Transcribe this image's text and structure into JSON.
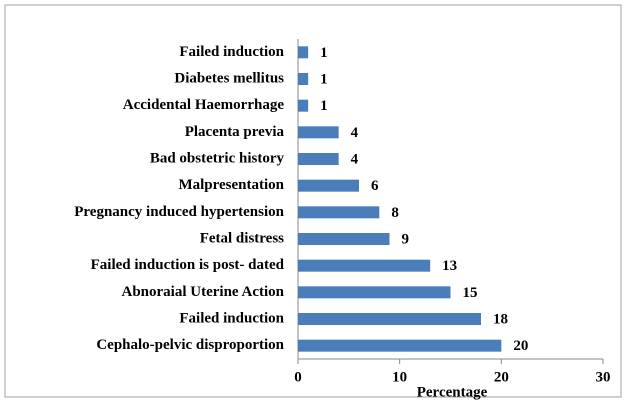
{
  "chart_data": {
    "type": "bar",
    "orientation": "horizontal",
    "categories": [
      "Failed induction",
      "Diabetes mellitus",
      "Accidental Haemorrhage",
      "Placenta previa",
      "Bad obstetric history",
      "Malpresentation",
      "Pregnancy induced hypertension",
      "Fetal distress",
      "Failed induction is post- dated",
      "Abnoraial Uterine Action",
      "Failed induction",
      "Cephalo-pelvic disproportion"
    ],
    "values": [
      1,
      1,
      1,
      4,
      4,
      6,
      8,
      9,
      13,
      15,
      18,
      20
    ],
    "color": "#4a7ebb",
    "xlabel": "Percentage",
    "xlim": [
      0,
      30
    ],
    "xticks": [
      0,
      10,
      20,
      30
    ],
    "grid": false
  }
}
